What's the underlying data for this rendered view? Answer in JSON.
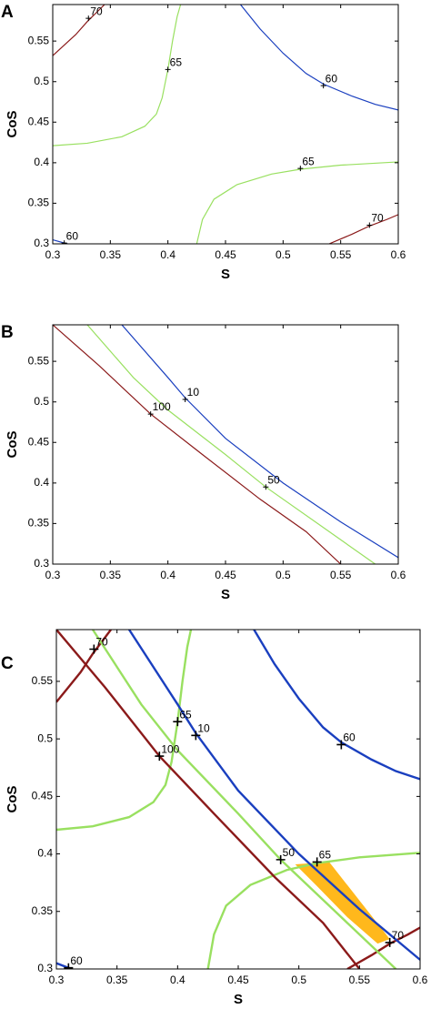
{
  "chart_data": [
    {
      "panel": "A",
      "type": "contour",
      "xlabel": "S",
      "ylabel": "CoS",
      "xlim": [
        0.3,
        0.6
      ],
      "ylim": [
        0.3,
        0.595
      ],
      "xticks": [
        0.3,
        0.35,
        0.4,
        0.45,
        0.5,
        0.55,
        0.6
      ],
      "yticks": [
        0.3,
        0.35,
        0.4,
        0.45,
        0.5,
        0.55
      ],
      "series": [
        {
          "name": "70",
          "color": "#8b1a1a",
          "x": [
            0.3,
            0.31,
            0.32,
            0.33,
            0.34,
            0.345
          ],
          "y": [
            0.532,
            0.545,
            0.558,
            0.574,
            0.588,
            0.595
          ],
          "label_x": 0.331,
          "label_y": 0.578
        },
        {
          "name": "65",
          "color": "#99e060",
          "x": [
            0.3,
            0.33,
            0.36,
            0.38,
            0.39,
            0.395,
            0.4,
            0.404,
            0.408,
            0.411
          ],
          "y": [
            0.421,
            0.424,
            0.432,
            0.445,
            0.46,
            0.48,
            0.515,
            0.55,
            0.58,
            0.595
          ],
          "label_x": 0.4,
          "label_y": 0.515
        },
        {
          "name": "60",
          "color": "#1a3fbf",
          "x": [
            0.463,
            0.48,
            0.5,
            0.52,
            0.535,
            0.56,
            0.58,
            0.6
          ],
          "y": [
            0.595,
            0.565,
            0.535,
            0.51,
            0.497,
            0.482,
            0.472,
            0.465
          ],
          "label_x": 0.535,
          "label_y": 0.495
        },
        {
          "name": "65",
          "color": "#99e060",
          "x": [
            0.425,
            0.43,
            0.44,
            0.46,
            0.49,
            0.515,
            0.55,
            0.6
          ],
          "y": [
            0.3,
            0.33,
            0.355,
            0.373,
            0.386,
            0.392,
            0.397,
            0.401
          ],
          "label_x": 0.515,
          "label_y": 0.393
        },
        {
          "name": "70",
          "color": "#8b1a1a",
          "x": [
            0.54,
            0.56,
            0.575,
            0.59,
            0.6
          ],
          "y": [
            0.3,
            0.312,
            0.322,
            0.33,
            0.336
          ],
          "label_x": 0.575,
          "label_y": 0.323
        },
        {
          "name": "60",
          "color": "#1a3fbf",
          "x": [
            0.3,
            0.31,
            0.313
          ],
          "y": [
            0.305,
            0.301,
            0.3
          ],
          "label_x": 0.31,
          "label_y": 0.301
        }
      ]
    },
    {
      "panel": "B",
      "type": "contour",
      "xlabel": "S",
      "ylabel": "CoS",
      "xlim": [
        0.3,
        0.6
      ],
      "ylim": [
        0.3,
        0.595
      ],
      "xticks": [
        0.3,
        0.35,
        0.4,
        0.45,
        0.5,
        0.55,
        0.6
      ],
      "yticks": [
        0.3,
        0.35,
        0.4,
        0.45,
        0.5,
        0.55
      ],
      "series": [
        {
          "name": "10",
          "color": "#1a3fbf",
          "x": [
            0.36,
            0.4,
            0.415,
            0.45,
            0.5,
            0.55,
            0.6
          ],
          "y": [
            0.595,
            0.53,
            0.505,
            0.455,
            0.4,
            0.352,
            0.308
          ],
          "label_x": 0.415,
          "label_y": 0.503
        },
        {
          "name": "50",
          "color": "#99e060",
          "x": [
            0.33,
            0.37,
            0.4,
            0.45,
            0.485,
            0.53,
            0.58
          ],
          "y": [
            0.595,
            0.53,
            0.49,
            0.435,
            0.395,
            0.35,
            0.3
          ],
          "label_x": 0.485,
          "label_y": 0.395
        },
        {
          "name": "100",
          "color": "#8b1a1a",
          "x": [
            0.3,
            0.34,
            0.385,
            0.43,
            0.48,
            0.52,
            0.55
          ],
          "y": [
            0.595,
            0.545,
            0.485,
            0.435,
            0.38,
            0.34,
            0.3
          ],
          "label_x": 0.385,
          "label_y": 0.485
        }
      ]
    },
    {
      "panel": "C",
      "type": "contour",
      "xlabel": "S",
      "ylabel": "CoS",
      "xlim": [
        0.3,
        0.6
      ],
      "ylim": [
        0.3,
        0.595
      ],
      "xticks": [
        0.3,
        0.35,
        0.4,
        0.45,
        0.5,
        0.55,
        0.6
      ],
      "yticks": [
        0.3,
        0.35,
        0.4,
        0.45,
        0.5,
        0.55
      ],
      "region": {
        "color": "#ffb81c",
        "x": [
          0.497,
          0.525,
          0.575,
          0.565,
          0.54,
          0.515
        ],
        "y": [
          0.391,
          0.393,
          0.326,
          0.322,
          0.345,
          0.372
        ]
      },
      "series": [
        {
          "name": "70",
          "color": "#8b1a1a",
          "x": [
            0.3,
            0.31,
            0.32,
            0.33,
            0.34,
            0.345
          ],
          "y": [
            0.532,
            0.545,
            0.558,
            0.574,
            0.588,
            0.595
          ],
          "label_x": 0.331,
          "label_y": 0.578
        },
        {
          "name": "65",
          "color": "#99e060",
          "x": [
            0.3,
            0.33,
            0.36,
            0.38,
            0.39,
            0.395,
            0.4,
            0.404,
            0.408,
            0.411
          ],
          "y": [
            0.421,
            0.424,
            0.432,
            0.445,
            0.46,
            0.48,
            0.515,
            0.55,
            0.58,
            0.595
          ],
          "label_x": 0.4,
          "label_y": 0.515
        },
        {
          "name": "60",
          "color": "#1a3fbf",
          "x": [
            0.463,
            0.48,
            0.5,
            0.52,
            0.535,
            0.56,
            0.58,
            0.6
          ],
          "y": [
            0.595,
            0.565,
            0.535,
            0.51,
            0.497,
            0.482,
            0.472,
            0.465
          ],
          "label_x": 0.535,
          "label_y": 0.495
        },
        {
          "name": "65",
          "color": "#99e060",
          "x": [
            0.425,
            0.43,
            0.44,
            0.46,
            0.49,
            0.515,
            0.55,
            0.6
          ],
          "y": [
            0.3,
            0.33,
            0.355,
            0.373,
            0.386,
            0.392,
            0.397,
            0.401
          ],
          "label_x": 0.515,
          "label_y": 0.393
        },
        {
          "name": "70",
          "color": "#8b1a1a",
          "x": [
            0.54,
            0.56,
            0.575,
            0.59,
            0.6
          ],
          "y": [
            0.3,
            0.312,
            0.322,
            0.33,
            0.336
          ],
          "label_x": 0.575,
          "label_y": 0.323
        },
        {
          "name": "60",
          "color": "#1a3fbf",
          "x": [
            0.3,
            0.31,
            0.313
          ],
          "y": [
            0.305,
            0.301,
            0.3
          ],
          "label_x": 0.31,
          "label_y": 0.301
        },
        {
          "name": "10",
          "color": "#1a3fbf",
          "x": [
            0.36,
            0.4,
            0.415,
            0.45,
            0.5,
            0.55,
            0.6
          ],
          "y": [
            0.595,
            0.53,
            0.505,
            0.455,
            0.4,
            0.352,
            0.308
          ],
          "label_x": 0.415,
          "label_y": 0.503
        },
        {
          "name": "50",
          "color": "#99e060",
          "x": [
            0.33,
            0.37,
            0.4,
            0.45,
            0.485,
            0.53,
            0.58
          ],
          "y": [
            0.595,
            0.53,
            0.49,
            0.435,
            0.395,
            0.35,
            0.3
          ],
          "label_x": 0.485,
          "label_y": 0.395
        },
        {
          "name": "100",
          "color": "#8b1a1a",
          "x": [
            0.3,
            0.34,
            0.385,
            0.43,
            0.48,
            0.52,
            0.55
          ],
          "y": [
            0.595,
            0.545,
            0.485,
            0.435,
            0.38,
            0.34,
            0.3
          ],
          "label_x": 0.385,
          "label_y": 0.485
        }
      ]
    }
  ]
}
